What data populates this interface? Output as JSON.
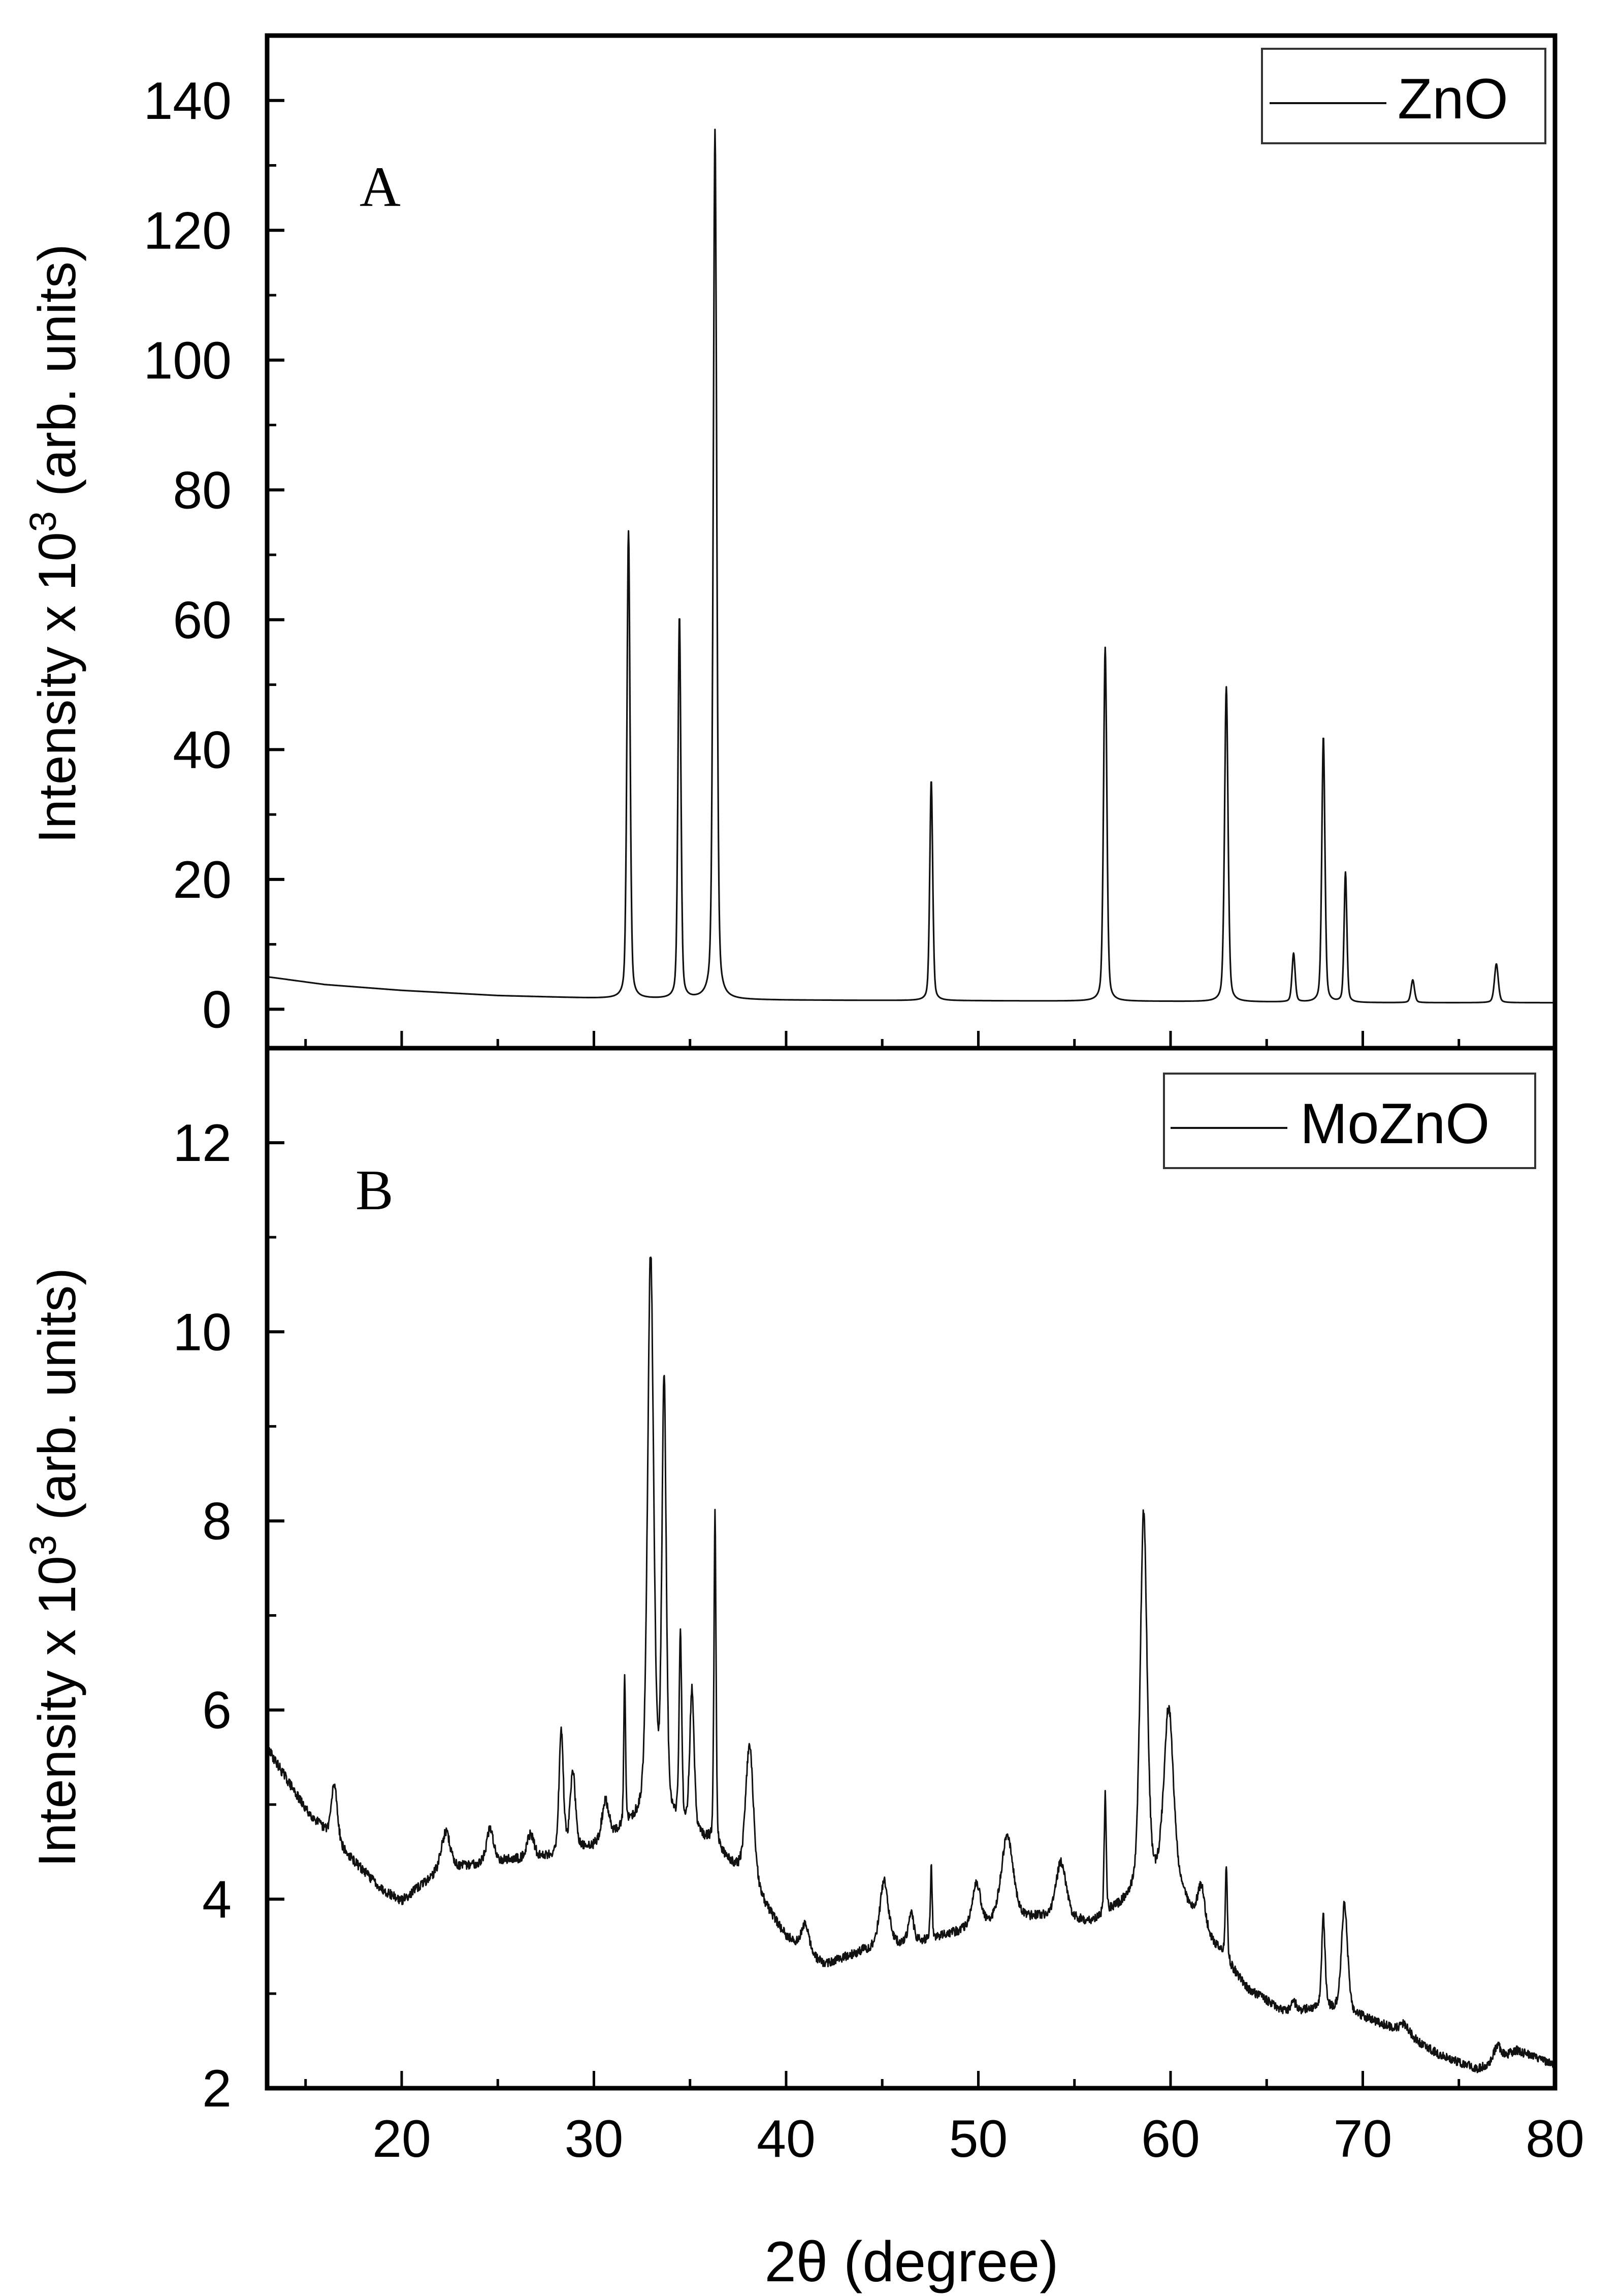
{
  "figure": {
    "xlabel": "2θ (degree)",
    "x_tick_labels": [
      "20",
      "30",
      "40",
      "50",
      "60",
      "70",
      "80"
    ]
  },
  "chart_data": [
    {
      "type": "line",
      "panel": "A",
      "panel_label": "A",
      "legend": "ZnO",
      "legend_position": "top-right",
      "ylabel_main": "Intensity x 10",
      "ylabel_exp": "3",
      "ylabel_tail": " (arb. units)",
      "xlabel": "2θ (degree)",
      "xlim": [
        13,
        80
      ],
      "ylim": [
        -6,
        150
      ],
      "y_ticks": [
        0,
        20,
        40,
        60,
        80,
        100,
        120,
        140
      ],
      "y_tick_labels": [
        "0",
        "20",
        "40",
        "60",
        "80",
        "100",
        "120",
        "140"
      ],
      "baseline": [
        [
          13,
          5.0
        ],
        [
          16,
          3.8
        ],
        [
          20,
          2.9
        ],
        [
          25,
          2.1
        ],
        [
          30,
          1.7
        ],
        [
          35,
          1.5
        ],
        [
          40,
          1.4
        ],
        [
          50,
          1.3
        ],
        [
          60,
          1.2
        ],
        [
          70,
          1.0
        ],
        [
          80,
          1.0
        ]
      ],
      "peaks": [
        {
          "x": 31.8,
          "height": 72,
          "width": 0.18
        },
        {
          "x": 34.45,
          "height": 59,
          "width": 0.17
        },
        {
          "x": 36.3,
          "height": 134,
          "width": 0.2
        },
        {
          "x": 47.55,
          "height": 34,
          "width": 0.17
        },
        {
          "x": 56.6,
          "height": 54.5,
          "width": 0.19
        },
        {
          "x": 62.9,
          "height": 48.5,
          "width": 0.2
        },
        {
          "x": 66.4,
          "height": 7.5,
          "width": 0.18
        },
        {
          "x": 67.95,
          "height": 41,
          "width": 0.18
        },
        {
          "x": 69.1,
          "height": 20,
          "width": 0.16
        },
        {
          "x": 72.6,
          "height": 3.5,
          "width": 0.2
        },
        {
          "x": 76.95,
          "height": 6,
          "width": 0.22
        }
      ],
      "noise": 0.0
    },
    {
      "type": "line",
      "panel": "B",
      "panel_label": "B",
      "legend": "MoZnO",
      "legend_position": "top-right",
      "ylabel_main": "Intensity x 10",
      "ylabel_exp": "3",
      "ylabel_tail": " (arb. units)",
      "xlabel": "2θ (degree)",
      "xlim": [
        13,
        80
      ],
      "ylim": [
        2,
        13
      ],
      "y_ticks": [
        2,
        4,
        6,
        8,
        10,
        12
      ],
      "y_tick_labels": [
        "2",
        "4",
        "6",
        "8",
        "10",
        "12"
      ],
      "baseline": [
        [
          13,
          5.6
        ],
        [
          15,
          4.95
        ],
        [
          17,
          4.5
        ],
        [
          19,
          4.1
        ],
        [
          20,
          3.98
        ],
        [
          22,
          4.3
        ],
        [
          25,
          4.4
        ],
        [
          28,
          4.45
        ],
        [
          30,
          4.55
        ],
        [
          33,
          4.9
        ],
        [
          36,
          4.6
        ],
        [
          38,
          4.2
        ],
        [
          40,
          3.6
        ],
        [
          42,
          3.3
        ],
        [
          44,
          3.45
        ],
        [
          47,
          3.55
        ],
        [
          50,
          3.7
        ],
        [
          53,
          3.8
        ],
        [
          56,
          3.75
        ],
        [
          58,
          4.0
        ],
        [
          60,
          4.2
        ],
        [
          62,
          3.6
        ],
        [
          64,
          3.05
        ],
        [
          66,
          2.8
        ],
        [
          68,
          2.85
        ],
        [
          70,
          2.75
        ],
        [
          72,
          2.6
        ],
        [
          74,
          2.35
        ],
        [
          76,
          2.2
        ],
        [
          78,
          2.4
        ],
        [
          80,
          2.25
        ]
      ],
      "peaks": [
        {
          "x": 16.5,
          "height": 0.6,
          "width": 0.35
        },
        {
          "x": 22.3,
          "height": 0.4,
          "width": 0.5
        },
        {
          "x": 24.6,
          "height": 0.35,
          "width": 0.4
        },
        {
          "x": 26.7,
          "height": 0.25,
          "width": 0.4
        },
        {
          "x": 28.3,
          "height": 1.3,
          "width": 0.25
        },
        {
          "x": 28.9,
          "height": 0.85,
          "width": 0.3
        },
        {
          "x": 30.6,
          "height": 0.4,
          "width": 0.4
        },
        {
          "x": 31.6,
          "height": 1.6,
          "width": 0.1
        },
        {
          "x": 32.95,
          "height": 5.9,
          "width": 0.35
        },
        {
          "x": 33.65,
          "height": 4.6,
          "width": 0.25
        },
        {
          "x": 34.5,
          "height": 2.0,
          "width": 0.15
        },
        {
          "x": 35.1,
          "height": 1.5,
          "width": 0.25
        },
        {
          "x": 36.3,
          "height": 3.5,
          "width": 0.12
        },
        {
          "x": 38.1,
          "height": 1.45,
          "width": 0.45
        },
        {
          "x": 41.0,
          "height": 0.3,
          "width": 0.4
        },
        {
          "x": 45.1,
          "height": 0.7,
          "width": 0.5
        },
        {
          "x": 46.5,
          "height": 0.3,
          "width": 0.3
        },
        {
          "x": 47.55,
          "height": 0.75,
          "width": 0.1
        },
        {
          "x": 49.9,
          "height": 0.45,
          "width": 0.5
        },
        {
          "x": 51.5,
          "height": 0.9,
          "width": 0.7
        },
        {
          "x": 54.3,
          "height": 0.6,
          "width": 0.6
        },
        {
          "x": 56.6,
          "height": 1.25,
          "width": 0.12
        },
        {
          "x": 58.6,
          "height": 4.0,
          "width": 0.4
        },
        {
          "x": 59.9,
          "height": 1.8,
          "width": 0.55
        },
        {
          "x": 61.6,
          "height": 0.4,
          "width": 0.4
        },
        {
          "x": 62.9,
          "height": 1.0,
          "width": 0.12
        },
        {
          "x": 66.4,
          "height": 0.1,
          "width": 0.3
        },
        {
          "x": 67.95,
          "height": 0.95,
          "width": 0.2
        },
        {
          "x": 69.05,
          "height": 1.15,
          "width": 0.35
        },
        {
          "x": 72.2,
          "height": 0.1,
          "width": 0.5
        },
        {
          "x": 77.0,
          "height": 0.15,
          "width": 0.4
        }
      ],
      "noise": 0.045
    }
  ]
}
